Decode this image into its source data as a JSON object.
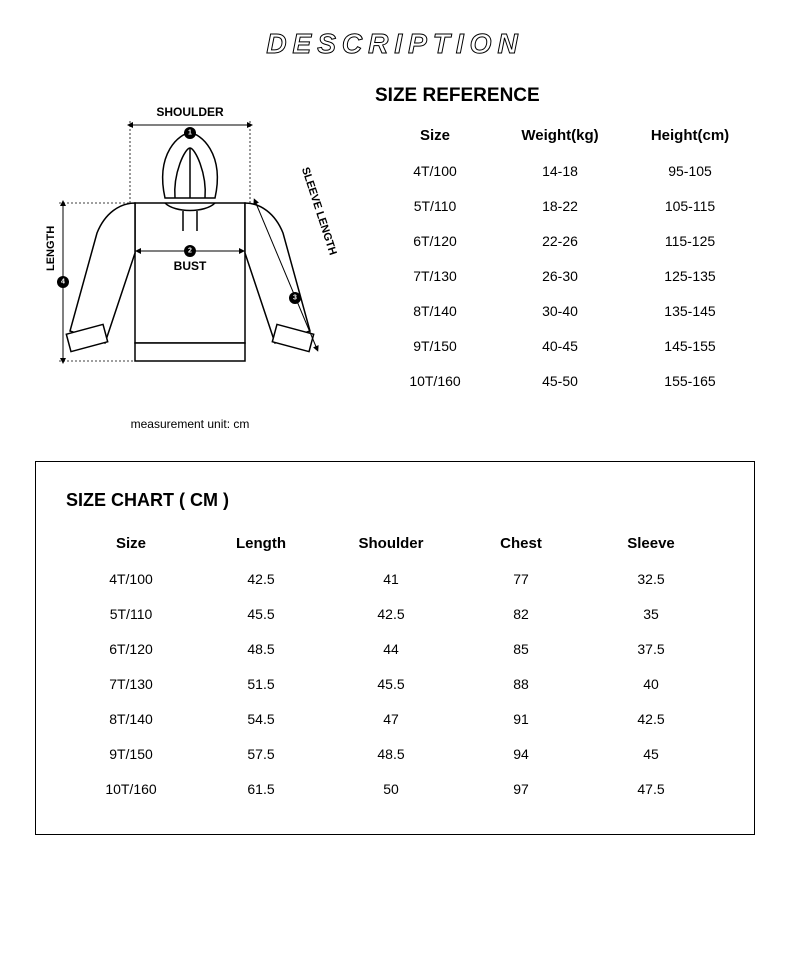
{
  "title": "DESCRIPTION",
  "diagram": {
    "shoulder_label": "SHOULDER",
    "bust_label": "BUST",
    "length_label": "LENGTH",
    "sleeve_label": "SLEEVE LENGTH",
    "unit_note": "measurement unit: cm",
    "marker_shoulder": "1",
    "marker_bust": "2",
    "marker_sleeve": "3",
    "marker_length": "4",
    "line_color": "#000000",
    "fill_color": "#ffffff",
    "arrow_color": "#000000"
  },
  "size_reference": {
    "title": "SIZE REFERENCE",
    "columns": [
      "Size",
      "Weight(kg)",
      "Height(cm)"
    ],
    "rows": [
      [
        "4T/100",
        "14-18",
        "95-105"
      ],
      [
        "5T/110",
        "18-22",
        "105-115"
      ],
      [
        "6T/120",
        "22-26",
        "115-125"
      ],
      [
        "7T/130",
        "26-30",
        "125-135"
      ],
      [
        "8T/140",
        "30-40",
        "135-145"
      ],
      [
        "9T/150",
        "40-45",
        "145-155"
      ],
      [
        "10T/160",
        "45-50",
        "155-165"
      ]
    ]
  },
  "size_chart": {
    "title": "SIZE CHART ( CM )",
    "columns": [
      "Size",
      "Length",
      "Shoulder",
      "Chest",
      "Sleeve"
    ],
    "rows": [
      [
        "4T/100",
        "42.5",
        "41",
        "77",
        "32.5"
      ],
      [
        "5T/110",
        "45.5",
        "42.5",
        "82",
        "35"
      ],
      [
        "6T/120",
        "48.5",
        "44",
        "85",
        "37.5"
      ],
      [
        "7T/130",
        "51.5",
        "45.5",
        "88",
        "40"
      ],
      [
        "8T/140",
        "54.5",
        "47",
        "91",
        "42.5"
      ],
      [
        "9T/150",
        "57.5",
        "48.5",
        "94",
        "45"
      ],
      [
        "10T/160",
        "61.5",
        "50",
        "97",
        "47.5"
      ]
    ]
  },
  "style": {
    "background_color": "#ffffff",
    "text_color": "#000000",
    "border_color": "#000000",
    "title_fontsize": 28,
    "section_title_fontsize": 19,
    "header_fontsize": 15,
    "body_fontsize": 14,
    "diagram_label_fontsize": 12
  }
}
